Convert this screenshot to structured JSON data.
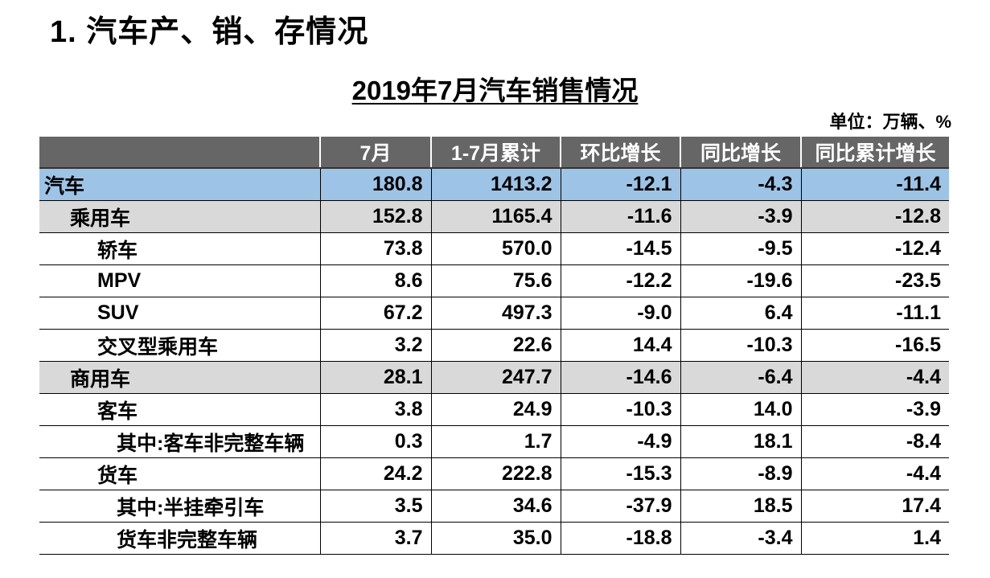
{
  "heading": "1. 汽车产、销、存情况",
  "table_title": "2019年7月汽车销售情况",
  "unit": "单位：万辆、%",
  "columns": [
    "",
    "7月",
    "1-7月累计",
    "环比增长",
    "同比增长",
    "同比累计增长"
  ],
  "rows": [
    {
      "level": 0,
      "style": "total",
      "name": "汽车",
      "values": [
        "180.8",
        "1413.2",
        "-12.1",
        "-4.3",
        "-11.4"
      ]
    },
    {
      "level": 1,
      "style": "sub",
      "name": "乘用车",
      "values": [
        "152.8",
        "1165.4",
        "-11.6",
        "-3.9",
        "-12.8"
      ]
    },
    {
      "level": 2,
      "style": "",
      "name": "轿车",
      "values": [
        "73.8",
        "570.0",
        "-14.5",
        "-9.5",
        "-12.4"
      ]
    },
    {
      "level": 2,
      "style": "",
      "name": "MPV",
      "values": [
        "8.6",
        "75.6",
        "-12.2",
        "-19.6",
        "-23.5"
      ]
    },
    {
      "level": 2,
      "style": "",
      "name": "SUV",
      "values": [
        "67.2",
        "497.3",
        "-9.0",
        "6.4",
        "-11.1"
      ]
    },
    {
      "level": 2,
      "style": "",
      "name": "交叉型乘用车",
      "values": [
        "3.2",
        "22.6",
        "14.4",
        "-10.3",
        "-16.5"
      ]
    },
    {
      "level": 1,
      "style": "sub",
      "name": "商用车",
      "values": [
        "28.1",
        "247.7",
        "-14.6",
        "-6.4",
        "-4.4"
      ]
    },
    {
      "level": 2,
      "style": "",
      "name": "客车",
      "values": [
        "3.8",
        "24.9",
        "-10.3",
        "14.0",
        "-3.9"
      ]
    },
    {
      "level": 3,
      "style": "",
      "name": "其中:客车非完整车辆",
      "values": [
        "0.3",
        "1.7",
        "-4.9",
        "18.1",
        "-8.4"
      ]
    },
    {
      "level": 2,
      "style": "",
      "name": "货车",
      "values": [
        "24.2",
        "222.8",
        "-15.3",
        "-8.9",
        "-4.4"
      ]
    },
    {
      "level": 3,
      "style": "",
      "name": "其中:半挂牵引车",
      "values": [
        "3.5",
        "34.6",
        "-37.9",
        "18.5",
        "17.4"
      ]
    },
    {
      "level": 3,
      "style": "",
      "name": "货车非完整车辆",
      "values": [
        "3.7",
        "35.0",
        "-18.8",
        "-3.4",
        "1.4"
      ]
    }
  ],
  "colors": {
    "header_bg": "#666666",
    "total_row_bg": "#9dc3e6",
    "subtotal_row_bg": "#d9d9d9"
  }
}
